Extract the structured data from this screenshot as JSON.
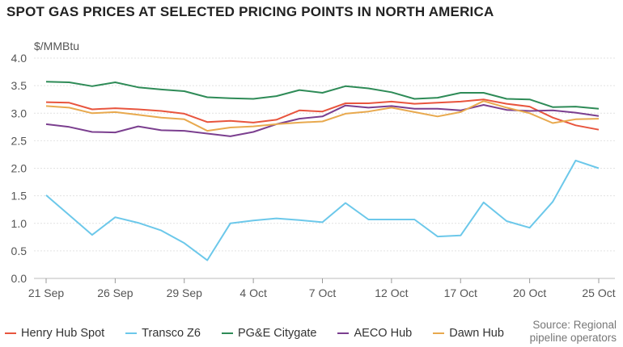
{
  "title": "SPOT GAS PRICES AT SELECTED PRICING POINTS IN NORTH AMERICA",
  "source_lines": [
    "Source: Regional",
    "pipeline operators"
  ],
  "chart_data": {
    "type": "line",
    "ylabel": "$/MMBtu",
    "ylim": [
      0,
      4
    ],
    "yticks": [
      "0.0",
      "0.5",
      "1.0",
      "1.5",
      "2.0",
      "2.5",
      "3.0",
      "3.5",
      "4.0"
    ],
    "grid": true,
    "legend_position": "bottom",
    "x": [
      "21 Sep",
      "22 Sep",
      "25 Sep",
      "26 Sep",
      "27 Sep",
      "28 Sep",
      "29 Sep",
      "2 Oct",
      "3 Oct",
      "4 Oct",
      "5 Oct",
      "6 Oct",
      "7 Oct",
      "10 Oct",
      "11 Oct",
      "12 Oct",
      "13 Oct",
      "16 Oct",
      "17 Oct",
      "18 Oct",
      "19 Oct",
      "20 Oct",
      "23 Oct",
      "24 Oct",
      "25 Oct"
    ],
    "xtick_labels": [
      "21 Sep",
      "26 Sep",
      "29 Sep",
      "4 Oct",
      "7 Oct",
      "12 Oct",
      "17 Oct",
      "20 Oct",
      "25 Oct"
    ],
    "series": [
      {
        "name": "Henry Hub Spot",
        "color": "#e8553e",
        "values": [
          3.2,
          3.19,
          3.07,
          3.09,
          3.07,
          3.04,
          2.99,
          2.84,
          2.86,
          2.83,
          2.88,
          3.05,
          3.03,
          3.18,
          3.18,
          3.21,
          3.17,
          3.19,
          3.21,
          3.25,
          3.17,
          3.12,
          2.92,
          2.78,
          2.7
        ]
      },
      {
        "name": "Transco Z6",
        "color": "#6cc8ea",
        "values": [
          1.51,
          1.15,
          0.79,
          1.11,
          1.01,
          0.87,
          0.64,
          0.33,
          1.0,
          1.05,
          1.09,
          1.06,
          1.02,
          1.37,
          1.07,
          1.07,
          1.07,
          0.76,
          0.78,
          1.38,
          1.04,
          0.92,
          1.39,
          2.14,
          2.0
        ]
      },
      {
        "name": "PG&E Citygate",
        "color": "#2e8b57",
        "values": [
          3.57,
          3.56,
          3.49,
          3.56,
          3.47,
          3.43,
          3.4,
          3.29,
          3.27,
          3.26,
          3.31,
          3.42,
          3.37,
          3.49,
          3.45,
          3.38,
          3.26,
          3.28,
          3.37,
          3.37,
          3.26,
          3.25,
          3.11,
          3.12,
          3.08
        ]
      },
      {
        "name": "AECO Hub",
        "color": "#7b3f8f",
        "values": [
          2.8,
          2.75,
          2.66,
          2.65,
          2.76,
          2.69,
          2.68,
          2.63,
          2.58,
          2.66,
          2.8,
          2.9,
          2.94,
          3.14,
          3.1,
          3.13,
          3.08,
          3.08,
          3.05,
          3.15,
          3.06,
          3.04,
          3.05,
          3.01,
          2.95
        ]
      },
      {
        "name": "Dawn Hub",
        "color": "#e8a94e",
        "values": [
          3.13,
          3.1,
          3.0,
          3.02,
          2.97,
          2.92,
          2.89,
          2.68,
          2.74,
          2.76,
          2.8,
          2.83,
          2.85,
          2.99,
          3.03,
          3.1,
          3.02,
          2.94,
          3.02,
          3.22,
          3.1,
          3.0,
          2.82,
          2.89,
          2.9
        ]
      }
    ]
  }
}
